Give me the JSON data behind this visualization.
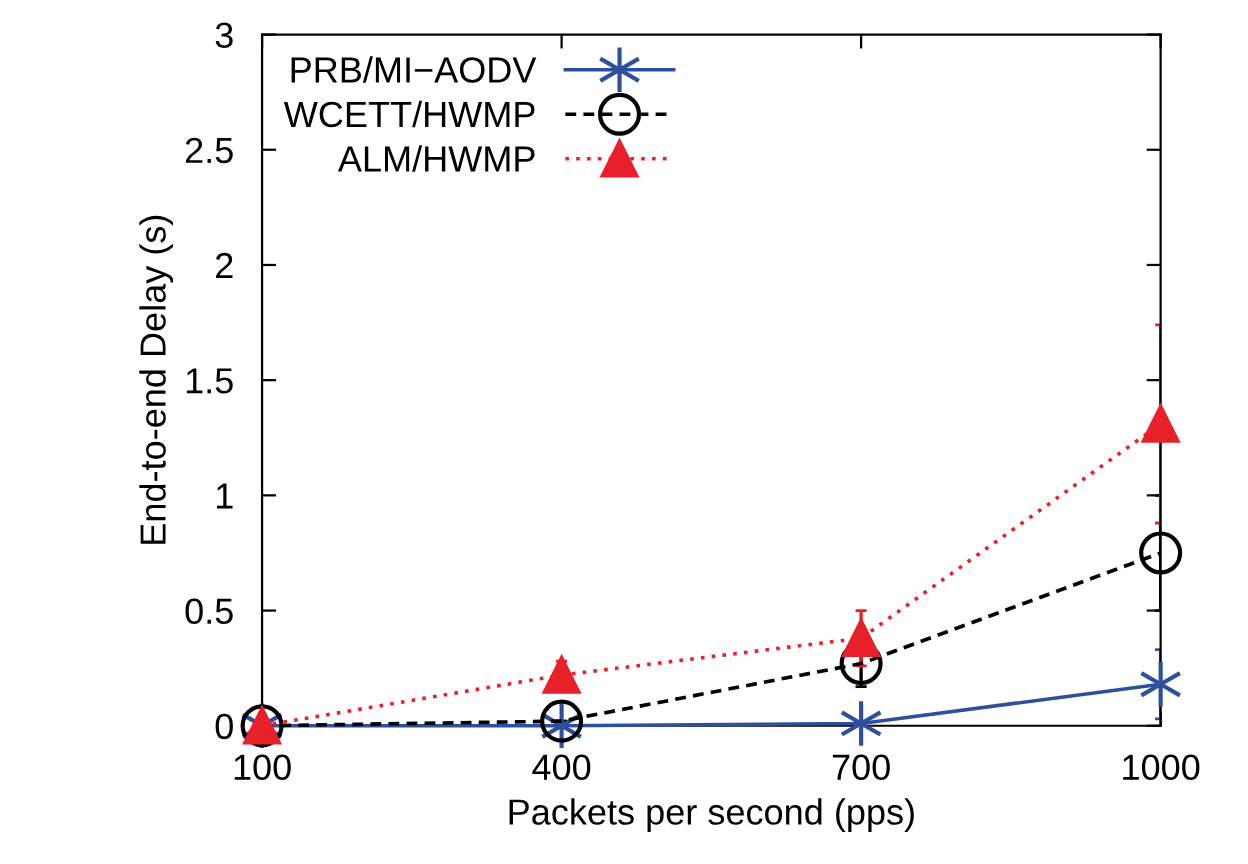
{
  "chart_data": {
    "type": "line",
    "xlabel": "Packets per second (pps)",
    "ylabel": "End-to-end Delay (s)",
    "x": [
      100,
      400,
      700,
      1000
    ],
    "series": [
      {
        "name": "PRB/MI−AODV",
        "color": "#2e4e9e",
        "values": [
          0,
          0,
          0.01,
          0.18
        ],
        "errors": [
          0,
          0,
          0,
          0.15
        ],
        "marker": "cross",
        "line_style": "solid"
      },
      {
        "name": "WCETT/HWMP",
        "color": "#000000",
        "values": [
          0,
          0.02,
          0.27,
          0.75
        ],
        "errors": [
          0,
          0,
          0.1,
          0.25
        ],
        "marker": "circle",
        "line_style": "dashed"
      },
      {
        "name": "ALM/HWMP",
        "color": "#e8202a",
        "values": [
          0,
          0.22,
          0.38,
          1.31
        ],
        "errors": [
          0,
          0.06,
          0.12,
          0.43
        ],
        "marker": "triangle",
        "line_style": "dotted"
      }
    ],
    "xlim": [
      100,
      1000
    ],
    "xticks": [
      100,
      400,
      700,
      1000
    ],
    "ylim": [
      0,
      3
    ],
    "yticks": [
      0,
      0.5,
      1,
      1.5,
      2,
      2.5,
      3
    ],
    "grid": false,
    "legend": "top left"
  }
}
